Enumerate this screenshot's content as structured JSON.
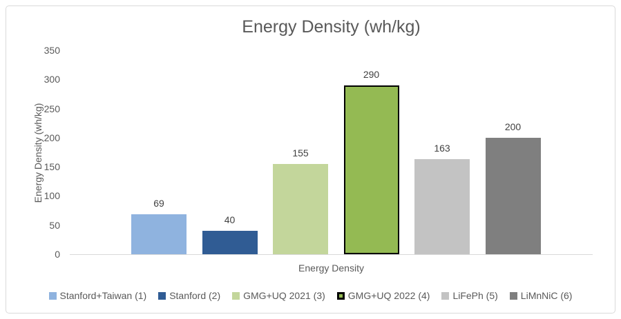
{
  "chart_data": {
    "type": "bar",
    "title": "Energy Density (wh/kg)",
    "xlabel": "Energy Density",
    "ylabel": "Energy Density (wh/kg)",
    "ylim": [
      0,
      350
    ],
    "yticks": [
      0,
      50,
      100,
      150,
      200,
      250,
      300,
      350
    ],
    "grid": false,
    "legend_position": "bottom",
    "categories": [
      "Energy Density"
    ],
    "series": [
      {
        "name": "Stanford+Taiwan (1)",
        "value": 69,
        "color": "#8FB3DF",
        "border_color": null
      },
      {
        "name": "Stanford (2)",
        "value": 40,
        "color": "#305C94",
        "border_color": null
      },
      {
        "name": "GMG+UQ 2021 (3)",
        "value": 155,
        "color": "#C3D69B",
        "border_color": null
      },
      {
        "name": "GMG+UQ 2022 (4)",
        "value": 290,
        "color": "#94BA53",
        "border_color": "#000000"
      },
      {
        "name": "LiFePh (5)",
        "value": 163,
        "color": "#C3C3C3",
        "border_color": null
      },
      {
        "name": "LiMnNiC (6)",
        "value": 200,
        "color": "#7F7F7F",
        "border_color": null
      }
    ]
  },
  "colors": {
    "title_text": "#595959",
    "axis_text": "#595959",
    "data_label_text": "#404040",
    "axis_line": "#D9D9D9",
    "frame_border": "#D9D9D9",
    "background": "#FFFFFF"
  }
}
